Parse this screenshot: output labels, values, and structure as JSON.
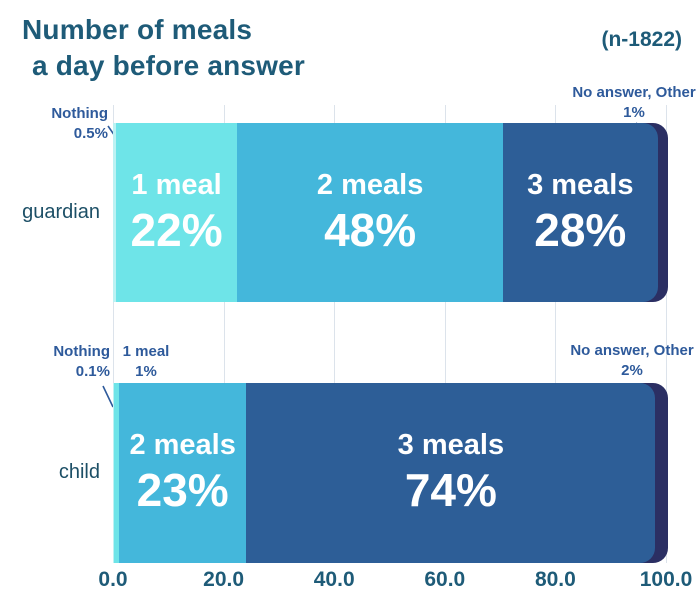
{
  "header": {
    "title_line1": "Number of meals",
    "title_line2": "a day before answer",
    "sample_size": "(n-1822)"
  },
  "colors": {
    "title_text": "#1E5B78",
    "axis_text": "#1E5B78",
    "category_text": "#1C4F66",
    "outside_label_text": "#2E5A9B",
    "grid": "#DCE3EB",
    "bar_text": "#FFFFFF",
    "nothing": "#BCF2F3",
    "one_meal": "#6EE4E8",
    "two_meals": "#44B7DB",
    "three_meals": "#2D5E97",
    "no_answer": "#2B2F63"
  },
  "chart_data": {
    "type": "bar",
    "orientation": "horizontal",
    "stacked": true,
    "title": "Number of meals a day before answer",
    "sample_size": "(n-1822)",
    "xlim": [
      0,
      100
    ],
    "x_ticks": [
      "0.0",
      "20.0",
      "40.0",
      "60.0",
      "80.0",
      "100.0"
    ],
    "grid": true,
    "categories": [
      "guardian",
      "child"
    ],
    "rows": [
      {
        "category": "guardian",
        "segments": [
          {
            "label": "Nothing",
            "value": 0.5,
            "display": "0.5%",
            "color_key": "nothing",
            "label_pos": "outside"
          },
          {
            "label": "1 meal",
            "value": 22,
            "display": "22%",
            "color_key": "one_meal",
            "label_pos": "inside"
          },
          {
            "label": "2 meals",
            "value": 48,
            "display": "48%",
            "color_key": "two_meals",
            "label_pos": "inside"
          },
          {
            "label": "3 meals",
            "value": 28,
            "display": "28%",
            "color_key": "three_meals",
            "label_pos": "inside"
          },
          {
            "label": "No answer, Other",
            "value": 1,
            "display": "1%",
            "color_key": "no_answer",
            "label_pos": "outside"
          }
        ]
      },
      {
        "category": "child",
        "segments": [
          {
            "label": "Nothing",
            "value": 0.1,
            "display": "0.1%",
            "color_key": "nothing",
            "label_pos": "outside"
          },
          {
            "label": "1 meal",
            "value": 1,
            "display": "1%",
            "color_key": "one_meal",
            "label_pos": "outside"
          },
          {
            "label": "2 meals",
            "value": 23,
            "display": "23%",
            "color_key": "two_meals",
            "label_pos": "inside"
          },
          {
            "label": "3 meals",
            "value": 74,
            "display": "74%",
            "color_key": "three_meals",
            "label_pos": "inside"
          },
          {
            "label": "No answer, Other",
            "value": 2,
            "display": "2%",
            "color_key": "no_answer",
            "label_pos": "outside"
          }
        ]
      }
    ],
    "outside_labels": [
      {
        "id": "guardian-nothing",
        "line1": "Nothing",
        "line2": "0.5%"
      },
      {
        "id": "guardian-noanswer",
        "line1": "No answer, Other",
        "line2": "1%"
      },
      {
        "id": "child-nothing",
        "line1": "Nothing",
        "line2": "0.1%"
      },
      {
        "id": "child-onemeal",
        "line1": "1 meal",
        "line2": "1%"
      },
      {
        "id": "child-noanswer",
        "line1": "No answer, Other",
        "line2": "2%"
      }
    ]
  }
}
